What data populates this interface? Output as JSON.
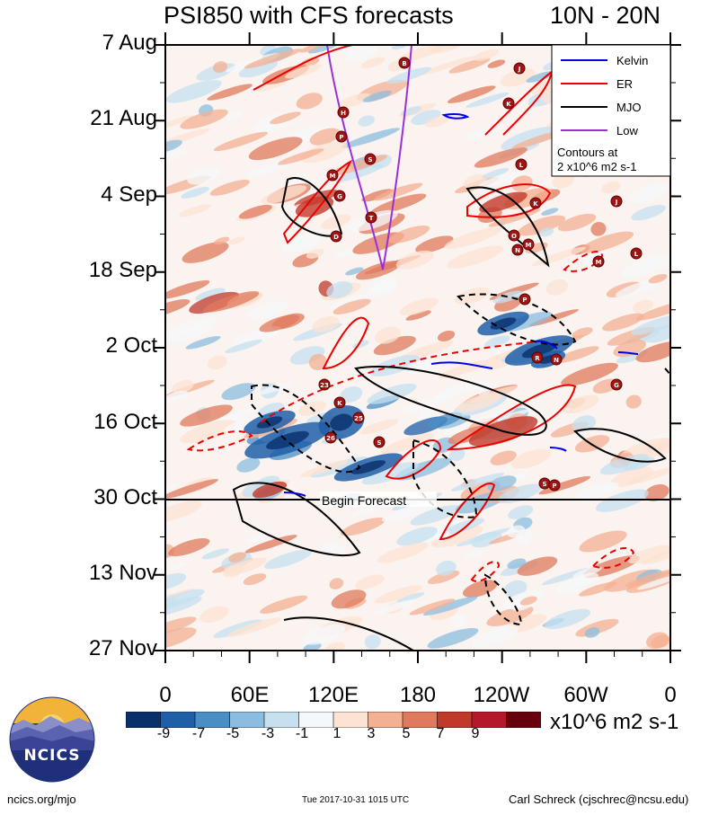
{
  "title": "PSI850 with CFS forecasts",
  "lat_band": "10N - 20N",
  "chart_data": {
    "type": "heatmap",
    "title": "PSI850 with CFS forecasts",
    "subtitle": "10N - 20N",
    "y_tick_labels": [
      "7 Aug",
      "21 Aug",
      "4 Sep",
      "18 Sep",
      "2 Oct",
      "16 Oct",
      "30 Oct",
      "13 Nov",
      "27 Nov"
    ],
    "x_tick_labels": [
      "0",
      "60E",
      "120E",
      "180",
      "120W",
      "60W",
      "0"
    ],
    "xlim": [
      0,
      360
    ],
    "colorbar": {
      "labels": [
        "-9",
        "-7",
        "-5",
        "-3",
        "-1",
        "1",
        "3",
        "5",
        "7",
        "9"
      ],
      "colors": [
        "#08306b",
        "#1f5fa8",
        "#4b8ec6",
        "#8cbde0",
        "#c6e0f0",
        "#f5f8fb",
        "#fce3d3",
        "#f4b093",
        "#e07a5c",
        "#c0392b",
        "#b5182a",
        "#67000d"
      ],
      "units": "x10^6 m2 s-1"
    },
    "forecast_marker": "Begin Forecast",
    "legend": {
      "entries": [
        {
          "label": "Kelvin",
          "color": "#0000ee"
        },
        {
          "label": "ER",
          "color": "#ee0000"
        },
        {
          "label": "MJO",
          "color": "#000000"
        },
        {
          "label": "Low",
          "color": "#9b30d9"
        }
      ],
      "note": [
        "Contours at",
        "2 x10^6 m2 s-1"
      ],
      "placement": "top-right"
    },
    "storm_labels": [
      "B",
      "J",
      "H",
      "K",
      "P",
      "S",
      "L",
      "M",
      "G",
      "K",
      "J",
      "T",
      "D",
      "O",
      "N",
      "M",
      "L",
      "M",
      "P",
      "23",
      "R",
      "N",
      "G",
      "K",
      "25",
      "26",
      "S",
      "S",
      "P"
    ]
  },
  "footer": {
    "url": "ncics.org/mjo",
    "timestamp": "Tue 2017-10-31 1015 UTC",
    "author": "Carl Schreck (cjschrec@ncsu.edu)"
  },
  "logo": {
    "text": "NCICS"
  }
}
